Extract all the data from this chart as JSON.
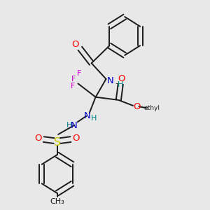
{
  "bg_color": "#e8e8e8",
  "bond_color": "#1a1a1a",
  "colors": {
    "O": "#ff0000",
    "N": "#0000cc",
    "F": "#cc00cc",
    "S": "#cccc00",
    "H": "#008080",
    "C": "#1a1a1a"
  }
}
